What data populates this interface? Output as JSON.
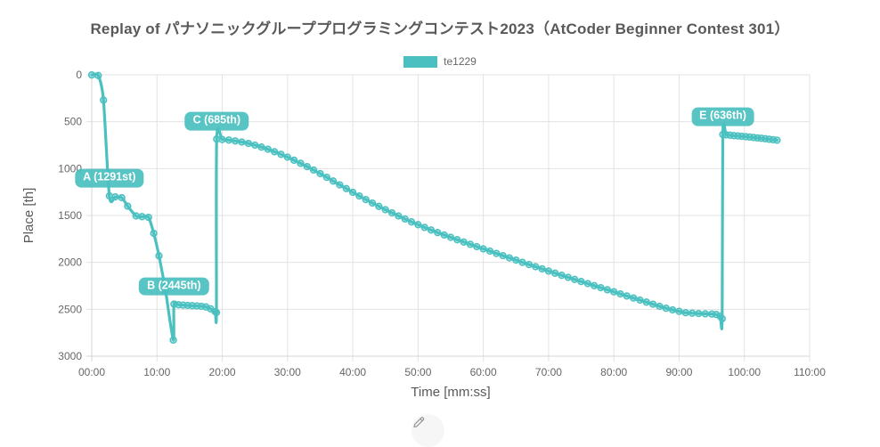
{
  "title": "Replay of パナソニックグループプログラミングコンテスト2023（AtCoder Beginner Contest 301）",
  "legend": {
    "series_label": "te1229",
    "color": "#4BC0C0"
  },
  "edit_button": {
    "icon": "pencil-icon"
  },
  "chart_data": {
    "type": "line",
    "title": "Replay of パナソニックグループプログラミングコンテスト2023（AtCoder Beginner Contest 301）",
    "xlabel": "Time [mm:ss]",
    "ylabel": "Place [th]",
    "xlim": [
      0,
      110
    ],
    "ylim": [
      0,
      3000
    ],
    "y_reversed": true,
    "grid": true,
    "legend_position": "top",
    "x_tick_values": [
      0,
      10,
      20,
      30,
      40,
      50,
      60,
      70,
      80,
      90,
      100,
      110
    ],
    "x_tick_labels": [
      "00:00",
      "10:00",
      "20:00",
      "30:00",
      "40:00",
      "50:00",
      "60:00",
      "70:00",
      "80:00",
      "90:00",
      "100:00",
      "110:00"
    ],
    "y_tick_values": [
      0,
      500,
      1000,
      1500,
      2000,
      2500,
      3000
    ],
    "series": [
      {
        "name": "te1229",
        "color": "#4BC0C0",
        "point_fill": "rgba(75,192,192,0.40)",
        "points": [
          [
            0,
            2
          ],
          [
            1,
            8
          ],
          [
            1.8,
            270
          ],
          [
            2.7,
            1291
          ],
          [
            3.6,
            1302
          ],
          [
            4.6,
            1310
          ],
          [
            5.5,
            1400
          ],
          [
            6.8,
            1505
          ],
          [
            7.7,
            1512
          ],
          [
            8.7,
            1520
          ],
          [
            9.5,
            1690
          ],
          [
            10.3,
            1930
          ],
          [
            11.3,
            2300
          ],
          [
            12.5,
            2828
          ],
          [
            12.6,
            2445
          ],
          [
            13.3,
            2452
          ],
          [
            14,
            2456
          ],
          [
            14.7,
            2459
          ],
          [
            15.4,
            2462
          ],
          [
            16.1,
            2465
          ],
          [
            16.8,
            2468
          ],
          [
            17.5,
            2475
          ],
          [
            18.2,
            2495
          ],
          [
            18.9,
            2525
          ],
          [
            19.1,
            2535
          ],
          [
            19.15,
            685
          ],
          [
            20,
            690
          ],
          [
            21,
            696
          ],
          [
            22,
            705
          ],
          [
            23,
            717
          ],
          [
            24,
            732
          ],
          [
            25,
            750
          ],
          [
            26,
            771
          ],
          [
            27,
            794
          ],
          [
            28,
            820
          ],
          [
            29,
            848
          ],
          [
            30,
            878
          ],
          [
            31,
            910
          ],
          [
            32,
            944
          ],
          [
            33,
            979
          ],
          [
            34,
            1016
          ],
          [
            35,
            1054
          ],
          [
            36,
            1093
          ],
          [
            37,
            1133
          ],
          [
            38,
            1173
          ],
          [
            39,
            1213
          ],
          [
            40,
            1253
          ],
          [
            41,
            1292
          ],
          [
            42,
            1330
          ],
          [
            43,
            1367
          ],
          [
            44,
            1403
          ],
          [
            45,
            1438
          ],
          [
            46,
            1472
          ],
          [
            47,
            1505
          ],
          [
            48,
            1537
          ],
          [
            49,
            1568
          ],
          [
            50,
            1598
          ],
          [
            51,
            1627
          ],
          [
            52,
            1655
          ],
          [
            53,
            1682
          ],
          [
            54,
            1708
          ],
          [
            55,
            1733
          ],
          [
            56,
            1758
          ],
          [
            57,
            1783
          ],
          [
            58,
            1808
          ],
          [
            59,
            1832
          ],
          [
            60,
            1856
          ],
          [
            61,
            1880
          ],
          [
            62,
            1904
          ],
          [
            63,
            1928
          ],
          [
            64,
            1952
          ],
          [
            65,
            1976
          ],
          [
            66,
            2000
          ],
          [
            67,
            2023
          ],
          [
            68,
            2046
          ],
          [
            69,
            2069
          ],
          [
            70,
            2092
          ],
          [
            71,
            2115
          ],
          [
            72,
            2138
          ],
          [
            73,
            2160
          ],
          [
            74,
            2182
          ],
          [
            75,
            2204
          ],
          [
            76,
            2226
          ],
          [
            77,
            2248
          ],
          [
            78,
            2270
          ],
          [
            79,
            2292
          ],
          [
            80,
            2314
          ],
          [
            81,
            2336
          ],
          [
            82,
            2358
          ],
          [
            83,
            2380
          ],
          [
            84,
            2402
          ],
          [
            85,
            2424
          ],
          [
            86,
            2446
          ],
          [
            87,
            2468
          ],
          [
            88,
            2489
          ],
          [
            89,
            2506
          ],
          [
            90,
            2522
          ],
          [
            91,
            2537
          ],
          [
            92,
            2541
          ],
          [
            93,
            2545
          ],
          [
            94,
            2548
          ],
          [
            95,
            2551
          ],
          [
            95.7,
            2556
          ],
          [
            96.3,
            2575
          ],
          [
            96.6,
            2600
          ],
          [
            96.7,
            636
          ],
          [
            97.2,
            640
          ],
          [
            97.8,
            644
          ],
          [
            98.4,
            648
          ],
          [
            99,
            652
          ],
          [
            99.6,
            656
          ],
          [
            100.2,
            660
          ],
          [
            100.8,
            664
          ],
          [
            101.4,
            668
          ],
          [
            102,
            673
          ],
          [
            102.6,
            677
          ],
          [
            103.2,
            682
          ],
          [
            103.8,
            687
          ],
          [
            104.4,
            692
          ],
          [
            105,
            698
          ]
        ]
      }
    ],
    "annotations": [
      {
        "id": "A",
        "label": "A (1291st)",
        "t": 2.7,
        "place": 1291
      },
      {
        "id": "B",
        "label": "B (2445th)",
        "t": 12.6,
        "place": 2445
      },
      {
        "id": "C",
        "label": "C (685th)",
        "t": 19.15,
        "place": 685
      },
      {
        "id": "E",
        "label": "E (636th)",
        "t": 96.7,
        "place": 636
      }
    ]
  }
}
